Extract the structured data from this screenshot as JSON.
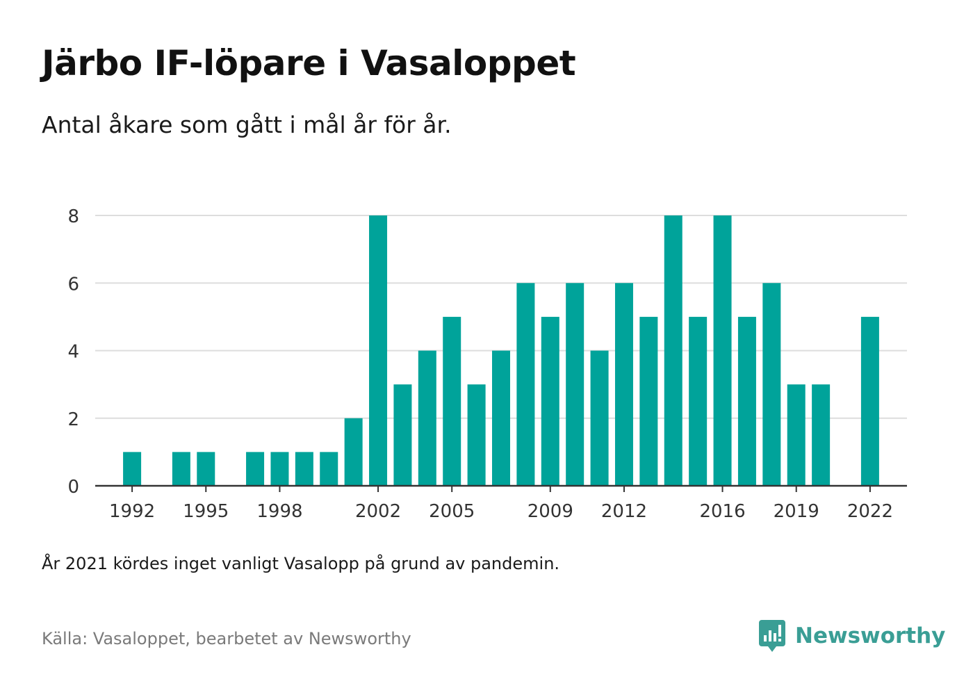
{
  "title": "Järbo IF-löpare i Vasaloppet",
  "subtitle": "Antal åkare som gått i mål år för år.",
  "note": "År 2021 kördes inget vanligt Vasalopp på grund av pandemin.",
  "source": "Källa: Vasaloppet, bearbetet av Newsworthy",
  "brand": {
    "name": "Newsworthy",
    "icon": "newsworthy-logo-icon",
    "color": "#3a9e95"
  },
  "colors": {
    "bar": "#00a39a",
    "grid": "#dddddd",
    "axis": "#333333"
  },
  "chart_data": {
    "type": "bar",
    "title": "Järbo IF-löpare i Vasaloppet",
    "subtitle": "Antal åkare som gått i mål år för år.",
    "xlabel": "",
    "ylabel": "",
    "x": [
      1992,
      1993,
      1994,
      1995,
      1996,
      1997,
      1998,
      1999,
      2000,
      2001,
      2002,
      2003,
      2004,
      2005,
      2006,
      2007,
      2008,
      2009,
      2010,
      2011,
      2012,
      2013,
      2014,
      2015,
      2016,
      2017,
      2018,
      2019,
      2020,
      2021,
      2022
    ],
    "values": [
      1,
      0,
      1,
      1,
      0,
      1,
      1,
      1,
      1,
      2,
      8,
      3,
      4,
      5,
      3,
      4,
      6,
      5,
      6,
      4,
      6,
      5,
      8,
      5,
      8,
      5,
      6,
      3,
      3,
      0,
      5
    ],
    "xticks": [
      1992,
      1995,
      1998,
      2002,
      2005,
      2009,
      2012,
      2016,
      2019,
      2022
    ],
    "yticks": [
      0,
      2,
      4,
      6,
      8
    ],
    "xlim": [
      1990.5,
      2023.5
    ],
    "ylim": [
      0,
      8
    ],
    "grid": true,
    "legend": "none"
  }
}
